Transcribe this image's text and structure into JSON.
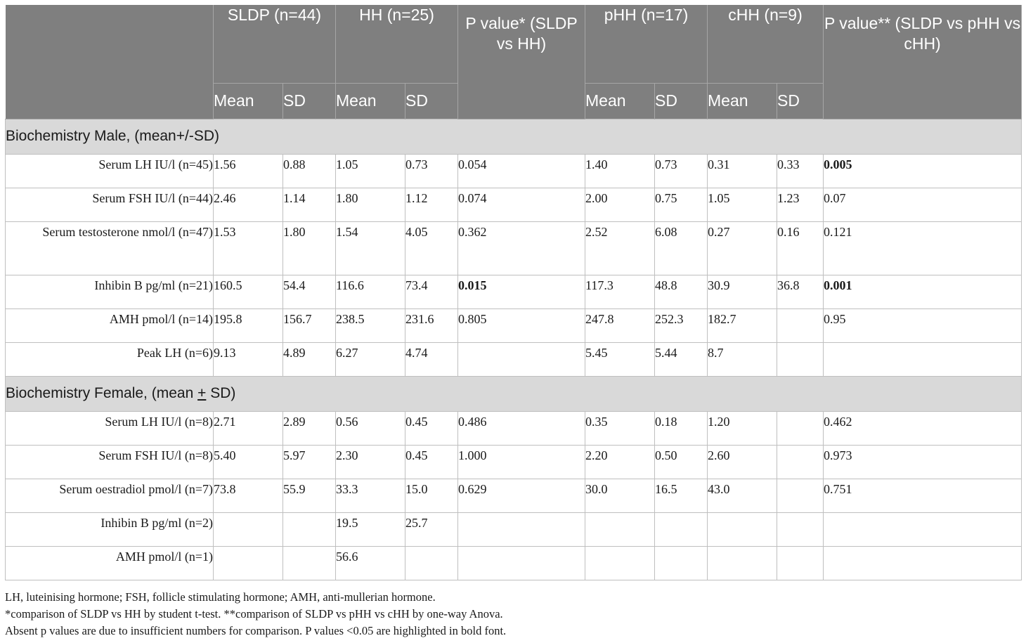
{
  "header": {
    "col_groups": [
      {
        "label": "SLDP (n=44)"
      },
      {
        "label": "HH (n=25)"
      },
      {
        "label": "P value* (SLDP vs HH)"
      },
      {
        "label": "pHH (n=17)"
      },
      {
        "label": "cHH (n=9)"
      },
      {
        "label": "P value** (SLDP vs pHH vs cHH)"
      }
    ],
    "mean_label": "Mean",
    "sd_label": "SD"
  },
  "sections": [
    {
      "title": "Biochemistry Male, (mean+/-SD)",
      "rows": [
        {
          "label": "Serum LH IU/l (n=45)",
          "sldp_mean": "1.56",
          "sldp_sd": "0.88",
          "hh_mean": "1.05",
          "hh_sd": "0.73",
          "p1": "0.054",
          "phh_mean": "1.40",
          "phh_sd": "0.73",
          "chh_mean": "0.31",
          "chh_sd": "0.33",
          "p2": "0.005"
        },
        {
          "label": "Serum FSH IU/l (n=44)",
          "sldp_mean": "2.46",
          "sldp_sd": "1.14",
          "hh_mean": "1.80",
          "hh_sd": "1.12",
          "p1": "0.074",
          "phh_mean": "2.00",
          "phh_sd": "0.75",
          "chh_mean": "1.05",
          "chh_sd": "1.23",
          "p2": "0.07"
        },
        {
          "label": "Serum testosterone nmol/l (n=47)",
          "sldp_mean": "1.53",
          "sldp_sd": "1.80",
          "hh_mean": "1.54",
          "hh_sd": "4.05",
          "p1": "0.362",
          "phh_mean": "2.52",
          "phh_sd": "6.08",
          "chh_mean": "0.27",
          "chh_sd": "0.16",
          "p2": "0.121"
        },
        {
          "label": "Inhibin B pg/ml (n=21)",
          "sldp_mean": "160.5",
          "sldp_sd": "54.4",
          "hh_mean": "116.6",
          "hh_sd": "73.4",
          "p1": "0.015",
          "phh_mean": "117.3",
          "phh_sd": "48.8",
          "chh_mean": "30.9",
          "chh_sd": "36.8",
          "p2": "0.001"
        },
        {
          "label": "AMH pmol/l (n=14)",
          "sldp_mean": "195.8",
          "sldp_sd": "156.7",
          "hh_mean": "238.5",
          "hh_sd": "231.6",
          "p1": "0.805",
          "phh_mean": "247.8",
          "phh_sd": "252.3",
          "chh_mean": "182.7",
          "chh_sd": "",
          "p2": "0.95"
        },
        {
          "label": "Peak LH (n=6)",
          "sldp_mean": "9.13",
          "sldp_sd": "4.89",
          "hh_mean": "6.27",
          "hh_sd": "4.74",
          "p1": "",
          "phh_mean": "5.45",
          "phh_sd": "5.44",
          "chh_mean": "8.7",
          "chh_sd": "",
          "p2": ""
        }
      ]
    },
    {
      "title_before": "Biochemistry Female, (mean ",
      "title_pm": "+",
      "title_after": " SD)",
      "rows": [
        {
          "label": "Serum LH IU/l (n=8)",
          "sldp_mean": "2.71",
          "sldp_sd": "2.89",
          "hh_mean": "0.56",
          "hh_sd": "0.45",
          "p1": "0.486",
          "phh_mean": "0.35",
          "phh_sd": "0.18",
          "chh_mean": "1.20",
          "chh_sd": "",
          "p2": "0.462"
        },
        {
          "label": "Serum FSH IU/l (n=8)",
          "sldp_mean": "5.40",
          "sldp_sd": "5.97",
          "hh_mean": "2.30",
          "hh_sd": "0.45",
          "p1": "1.000",
          "phh_mean": "2.20",
          "phh_sd": "0.50",
          "chh_mean": "2.60",
          "chh_sd": "",
          "p2": "0.973"
        },
        {
          "label": "Serum oestradiol pmol/l (n=7)",
          "sldp_mean": "73.8",
          "sldp_sd": "55.9",
          "hh_mean": "33.3",
          "hh_sd": "15.0",
          "p1": "0.629",
          "phh_mean": "30.0",
          "phh_sd": "16.5",
          "chh_mean": "43.0",
          "chh_sd": "",
          "p2": "0.751"
        },
        {
          "label": "Inhibin B pg/ml (n=2)",
          "sldp_mean": "",
          "sldp_sd": "",
          "hh_mean": "19.5",
          "hh_sd": "25.7",
          "p1": "",
          "phh_mean": "",
          "phh_sd": "",
          "chh_mean": "",
          "chh_sd": "",
          "p2": ""
        },
        {
          "label": "AMH pmol/l (n=1)",
          "sldp_mean": "",
          "sldp_sd": "",
          "hh_mean": "56.6",
          "hh_sd": "",
          "p1": "",
          "phh_mean": "",
          "phh_sd": "",
          "chh_mean": "",
          "chh_sd": "",
          "p2": ""
        }
      ]
    }
  ],
  "footnotes": [
    "LH, luteinising hormone; FSH, follicle stimulating hormone; AMH, anti-mullerian hormone.",
    "*comparison of SLDP vs HH by student t-test. **comparison of SLDP vs pHH vs cHH by one-way Anova.",
    "Absent p values are due to insufficient numbers for comparison. P values <0.05 are highlighted in bold font."
  ]
}
